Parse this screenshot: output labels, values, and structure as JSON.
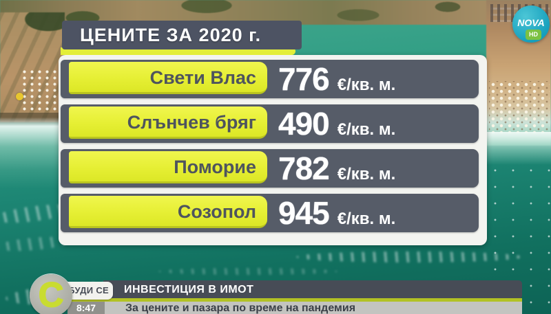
{
  "channel": {
    "name": "NOVA",
    "hd_badge": "HD"
  },
  "infographic": {
    "title": "ЦЕНИТЕ ЗА 2020 г.",
    "rows": [
      {
        "city": "Свети Влас",
        "price": "776",
        "unit": "€/кв. м."
      },
      {
        "city": "Слънчев бряг",
        "price": "490",
        "unit": "€/кв. м."
      },
      {
        "city": "Поморие",
        "price": "782",
        "unit": "€/кв. м."
      },
      {
        "city": "Созопол",
        "price": "945",
        "unit": "€/кв. м."
      }
    ]
  },
  "lower_third": {
    "show_logo_letter": "C",
    "show_name": "СЪБУДИ СЕ",
    "topic": "ИНВЕСТИЦИЯ В ИМОТ",
    "time": "8:47",
    "headline": "За цените и пазара по време на пандемия"
  },
  "colors": {
    "accent_yellow": "#e6ef34",
    "bar_gray": "#565c68",
    "olive_line": "#b2c224",
    "nova_teal": "#17a0bd",
    "hd_green": "#7cc142",
    "sea_teal": "#1d8674"
  },
  "chart_data": {
    "type": "table",
    "title": "ЦЕНИТЕ ЗА 2020 г.",
    "categories": [
      "Свети Влас",
      "Слънчев бряг",
      "Поморие",
      "Созопол"
    ],
    "values": [
      776,
      490,
      782,
      945
    ],
    "unit": "€/кв. м."
  }
}
